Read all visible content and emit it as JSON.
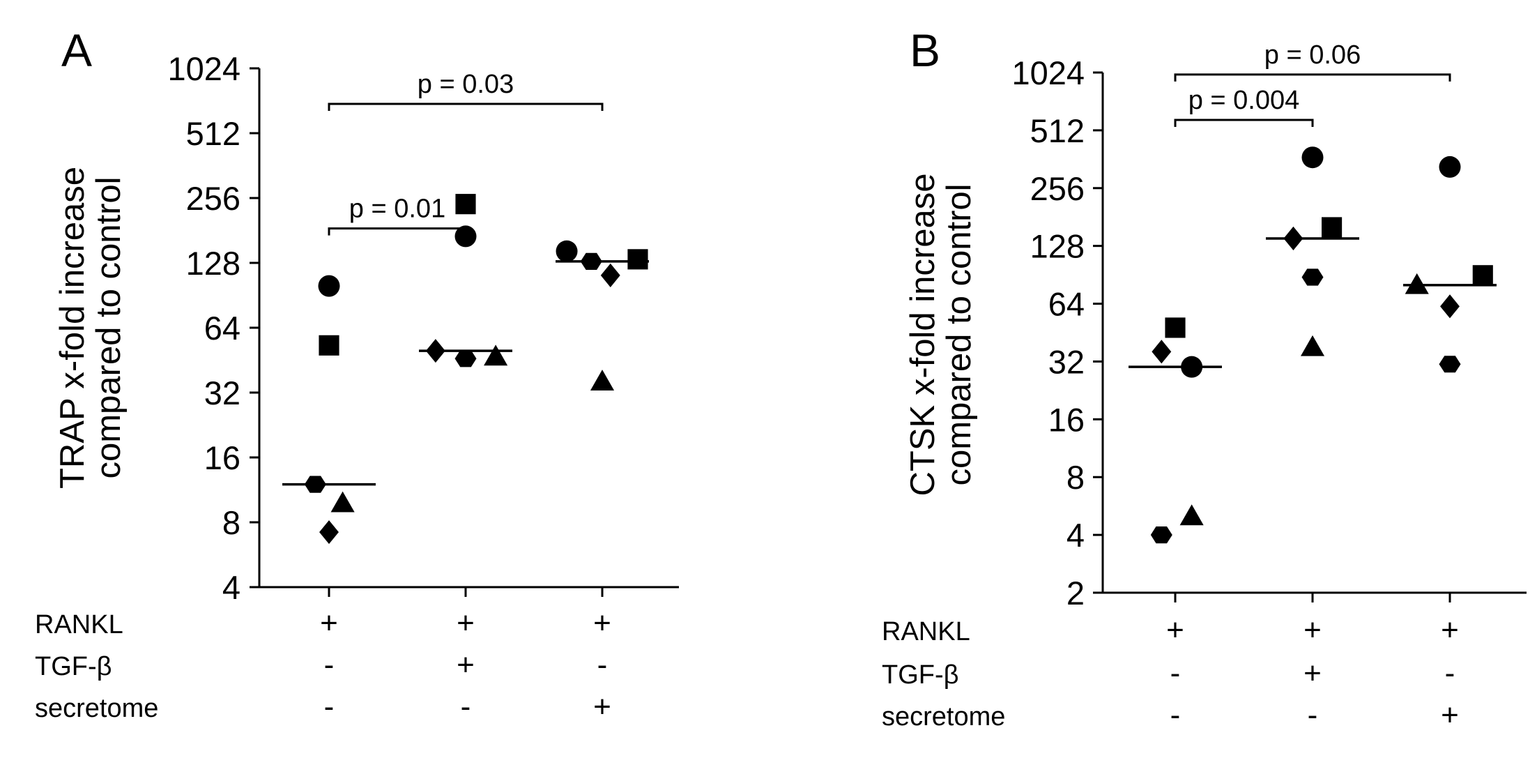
{
  "chart_data": [
    {
      "panel": "A",
      "type": "scatter",
      "scale": "log2",
      "ylabel_line1": "TRAP x-fold increase",
      "ylabel_line2": "compared to control",
      "yticks": [
        "4",
        "8",
        "16",
        "32",
        "64",
        "128",
        "256",
        "512",
        "1024"
      ],
      "ylim": [
        4,
        1024
      ],
      "groups": [
        "RANKL+",
        "RANKL+ TGF-β+",
        "RANKL+ secretome+"
      ],
      "conditions": [
        {
          "label": "RANKL",
          "values": [
            "+",
            "+",
            "+"
          ]
        },
        {
          "label": "TGF-β",
          "values": [
            "-",
            "+",
            "-"
          ]
        },
        {
          "label": "secretome",
          "values": [
            "-",
            "-",
            "+"
          ]
        }
      ],
      "medians": [
        12,
        50,
        130
      ],
      "points": [
        {
          "group": 0,
          "marker": "circle",
          "value": 100,
          "offset": 0
        },
        {
          "group": 0,
          "marker": "square",
          "value": 53,
          "offset": 0
        },
        {
          "group": 0,
          "marker": "hexagon",
          "value": 12,
          "offset": -0.1
        },
        {
          "group": 0,
          "marker": "triangle",
          "value": 9.8,
          "offset": 0.1
        },
        {
          "group": 0,
          "marker": "diamond",
          "value": 7.2,
          "offset": 0
        },
        {
          "group": 1,
          "marker": "square",
          "value": 240,
          "offset": 0
        },
        {
          "group": 1,
          "marker": "circle",
          "value": 170,
          "offset": 0
        },
        {
          "group": 1,
          "marker": "diamond",
          "value": 50,
          "offset": -0.22
        },
        {
          "group": 1,
          "marker": "hexagon",
          "value": 46,
          "offset": 0
        },
        {
          "group": 1,
          "marker": "triangle",
          "value": 47,
          "offset": 0.22
        },
        {
          "group": 2,
          "marker": "circle",
          "value": 145,
          "offset": -0.26
        },
        {
          "group": 2,
          "marker": "hexagon",
          "value": 130,
          "offset": -0.08
        },
        {
          "group": 2,
          "marker": "diamond",
          "value": 112,
          "offset": 0.06
        },
        {
          "group": 2,
          "marker": "square",
          "value": 133,
          "offset": 0.26
        },
        {
          "group": 2,
          "marker": "triangle",
          "value": 36,
          "offset": 0
        }
      ],
      "significance": [
        {
          "from": 0,
          "to": 1,
          "label": "p = 0.01",
          "level": 185
        },
        {
          "from": 0,
          "to": 2,
          "label": "p = 0.03",
          "level": 700
        }
      ]
    },
    {
      "panel": "B",
      "type": "scatter",
      "scale": "log2",
      "ylabel_line1": "CTSK x-fold increase",
      "ylabel_line2": "compared to control",
      "yticks": [
        "2",
        "4",
        "8",
        "16",
        "32",
        "64",
        "128",
        "256",
        "512",
        "1024"
      ],
      "ylim": [
        2,
        1024
      ],
      "groups": [
        "RANKL+",
        "RANKL+ TGF-β+",
        "RANKL+ secretome+"
      ],
      "conditions": [
        {
          "label": "RANKL",
          "values": [
            "+",
            "+",
            "+"
          ]
        },
        {
          "label": "TGF-β",
          "values": [
            "-",
            "+",
            "-"
          ]
        },
        {
          "label": "secretome",
          "values": [
            "-",
            "-",
            "+"
          ]
        }
      ],
      "medians": [
        30,
        140,
        80
      ],
      "points": [
        {
          "group": 0,
          "marker": "square",
          "value": 48,
          "offset": 0
        },
        {
          "group": 0,
          "marker": "diamond",
          "value": 36,
          "offset": -0.1
        },
        {
          "group": 0,
          "marker": "circle",
          "value": 30,
          "offset": 0.12
        },
        {
          "group": 0,
          "marker": "triangle",
          "value": 5,
          "offset": 0.12
        },
        {
          "group": 0,
          "marker": "hexagon",
          "value": 4,
          "offset": -0.1
        },
        {
          "group": 1,
          "marker": "circle",
          "value": 370,
          "offset": 0
        },
        {
          "group": 1,
          "marker": "square",
          "value": 160,
          "offset": 0.14
        },
        {
          "group": 1,
          "marker": "diamond",
          "value": 140,
          "offset": -0.14
        },
        {
          "group": 1,
          "marker": "hexagon",
          "value": 88,
          "offset": 0
        },
        {
          "group": 1,
          "marker": "triangle",
          "value": 38,
          "offset": 0
        },
        {
          "group": 2,
          "marker": "circle",
          "value": 330,
          "offset": 0
        },
        {
          "group": 2,
          "marker": "square",
          "value": 90,
          "offset": 0.24
        },
        {
          "group": 2,
          "marker": "triangle",
          "value": 80,
          "offset": -0.24
        },
        {
          "group": 2,
          "marker": "diamond",
          "value": 62,
          "offset": 0
        },
        {
          "group": 2,
          "marker": "hexagon",
          "value": 31,
          "offset": 0
        }
      ],
      "significance": [
        {
          "from": 0,
          "to": 1,
          "label": "p = 0.004",
          "level": 580
        },
        {
          "from": 0,
          "to": 2,
          "label": "p = 0.06",
          "level": 1000
        }
      ]
    }
  ]
}
